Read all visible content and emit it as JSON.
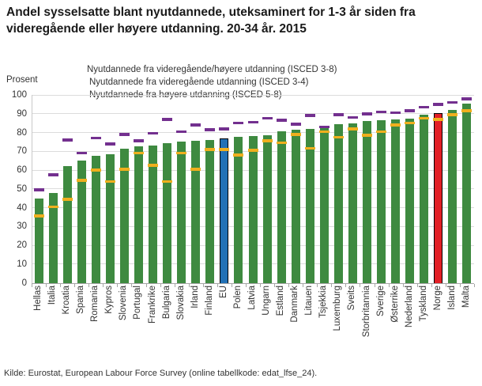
{
  "title": "Andel sysselsatte blant nyutdannede, uteksaminert for 1-3 år siden fra videregående eller høyere utdanning. 20-34 år. 2015",
  "source": "Kilde: Eurostat, European Labour Force Survey (online tabellkode: edat_lfse_24).",
  "chart_data": {
    "type": "bar",
    "title": "Andel sysselsatte blant nyutdannede, uteksaminert for 1-3 år siden fra videregående eller høyere utdanning. 20-34 år. 2015",
    "ylabel": "Prosent",
    "ylim": [
      0,
      100
    ],
    "ytick_step": 10,
    "grid": true,
    "legend_position": "top-left",
    "categories": [
      "Hellas",
      "Italia",
      "Kroatia",
      "Spania",
      "Romania",
      "Kypros",
      "Slovenia",
      "Portugal",
      "Frankrike",
      "Bulgaria",
      "Slovakia",
      "Irland",
      "Finland",
      "EU",
      "Polen",
      "Latvia",
      "Ungarn",
      "Estland",
      "Danmark",
      "Litauen",
      "Tsjekkia",
      "Luxemburg",
      "Sveits",
      "Storbritannia",
      "Sverige",
      "Østerrike",
      "Nederland",
      "Tyskland",
      "Norge",
      "Island",
      "Malta"
    ],
    "series": [
      {
        "name": "Nyutdannede fra videregående/høyere utdanning (ISCED 3-8)",
        "mark": "bar",
        "color": "#3e8a40",
        "values": [
          45,
          48,
          62,
          65,
          67.5,
          68.5,
          71.5,
          72.5,
          73,
          74.5,
          75,
          75.5,
          76,
          77,
          77.5,
          78,
          78.5,
          80.5,
          81.5,
          82,
          82.5,
          84.5,
          85,
          86,
          86.5,
          87,
          87.5,
          89.5,
          90.5,
          92,
          95.5
        ]
      },
      {
        "name": "Nyutdannede fra videregående utdanning (ISCED 3-4)",
        "mark": "dash",
        "color": "#efaf1e",
        "values": [
          35.5,
          40.5,
          44.5,
          54.5,
          60,
          54,
          60.5,
          69,
          62.5,
          54,
          69,
          60.5,
          71,
          71,
          68,
          70.5,
          75.5,
          74.5,
          79,
          71.5,
          80.5,
          77.5,
          82,
          78.5,
          80.5,
          84,
          85,
          87.5,
          87,
          89.5,
          91.5
        ]
      },
      {
        "name": "Nyutdannede fra høyere utdanning (ISCED 5-8)",
        "mark": "dash",
        "color": "#73308f",
        "values": [
          49.5,
          57.5,
          76,
          69,
          77,
          74,
          79,
          75.5,
          79.5,
          87,
          80.5,
          84,
          81.5,
          82,
          85,
          85.5,
          87.5,
          86.5,
          84.5,
          89,
          83,
          89.5,
          88,
          90,
          91,
          90.5,
          91.5,
          93.5,
          95,
          96,
          98
        ]
      }
    ],
    "highlights": {
      "EU": {
        "color": "#2271b6",
        "border": "#000000"
      },
      "Norge": {
        "color": "#e21f26",
        "border": "#000000"
      }
    }
  }
}
